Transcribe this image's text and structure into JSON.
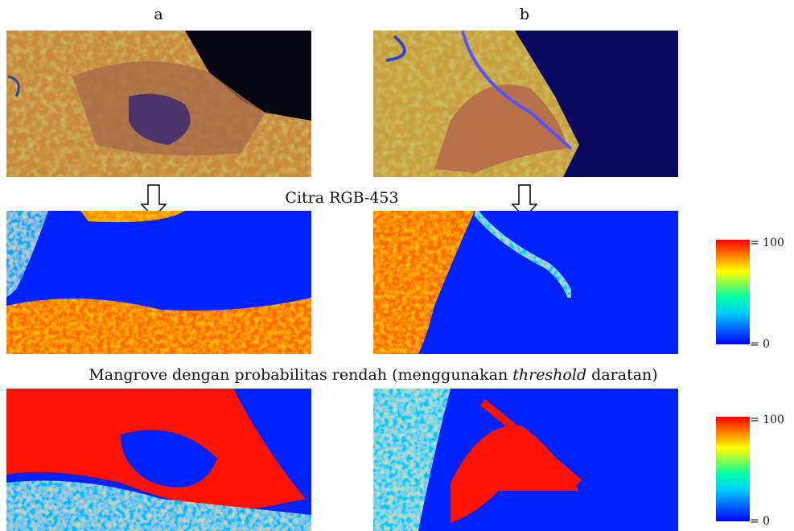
{
  "labels": {
    "a": "a",
    "b": "b"
  },
  "captions": {
    "rgb": "Citra RGB-453",
    "low_probability": {
      "before": "Mangrove dengan probabilitas rendah (menggunakan ",
      "italic": "threshold",
      "after": " daratan)"
    }
  },
  "colorbars": [
    {
      "max_label": "= 100",
      "min_label": "= 0"
    },
    {
      "max_label": "= 100",
      "min_label": "= 0"
    }
  ]
}
